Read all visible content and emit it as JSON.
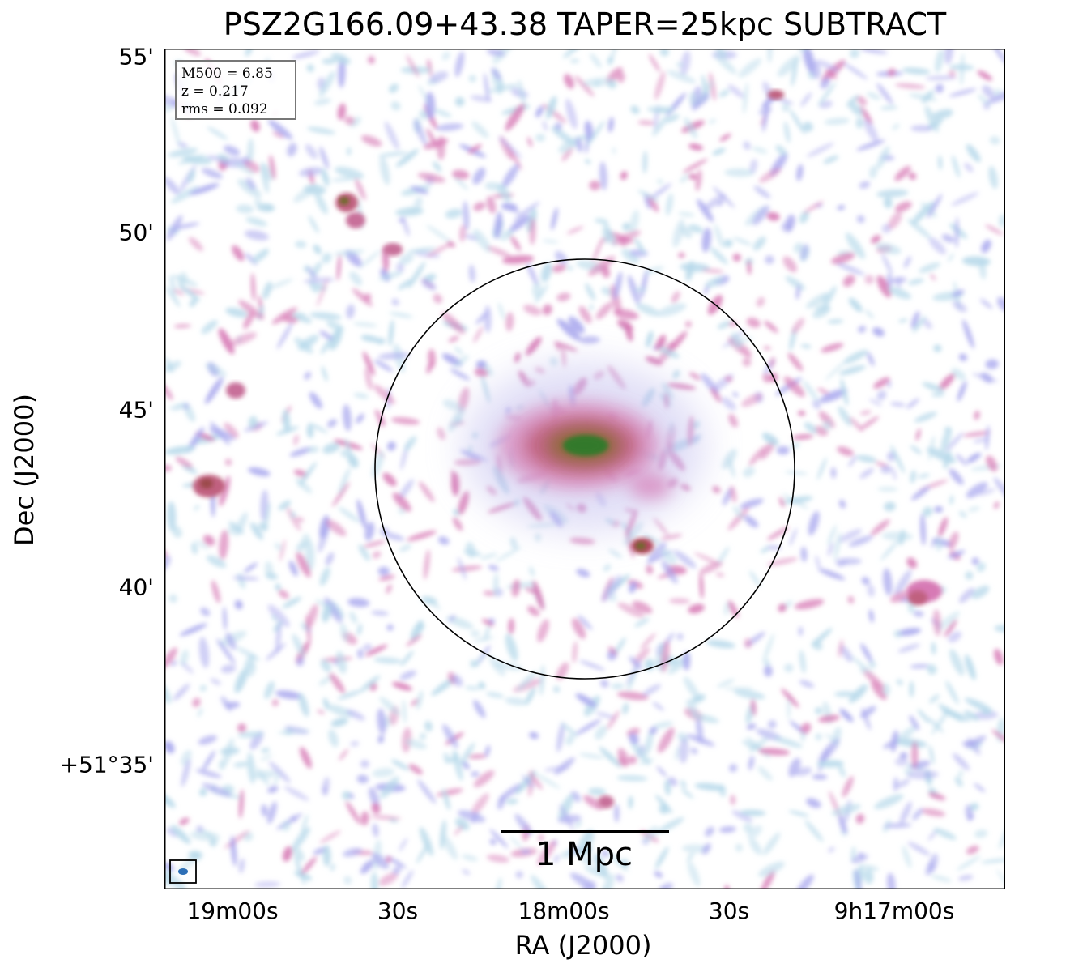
{
  "title": "PSZ2G166.09+43.38 TAPER=25kpc SUBTRACT",
  "axes": {
    "xlabel": "RA (J2000)",
    "ylabel": "Dec (J2000)",
    "x_ticks": [
      "19m00s",
      "30s",
      "18m00s",
      "30s",
      "9h17m00s"
    ],
    "y_ticks": [
      "55'",
      "50'",
      "45'",
      "40'",
      "+51°35'"
    ]
  },
  "info": {
    "m500": "M500 = 6.85",
    "z": "z = 0.217",
    "rms": "rms = 0.092"
  },
  "scalebar": {
    "label": "1 Mpc"
  },
  "colors": {
    "background": "#ffffff",
    "noise_light": "#b7d9ea",
    "noise_mid": "#a9a8ee",
    "emission_pink": "#d77ab5",
    "emission_red": "#b04a5e",
    "core_green": "#2e7a2a",
    "beam": "#2d6fb6"
  },
  "image": {
    "description_colormap": "cubehelix-like: white -> light blue -> lavender -> pink -> brown -> green"
  }
}
